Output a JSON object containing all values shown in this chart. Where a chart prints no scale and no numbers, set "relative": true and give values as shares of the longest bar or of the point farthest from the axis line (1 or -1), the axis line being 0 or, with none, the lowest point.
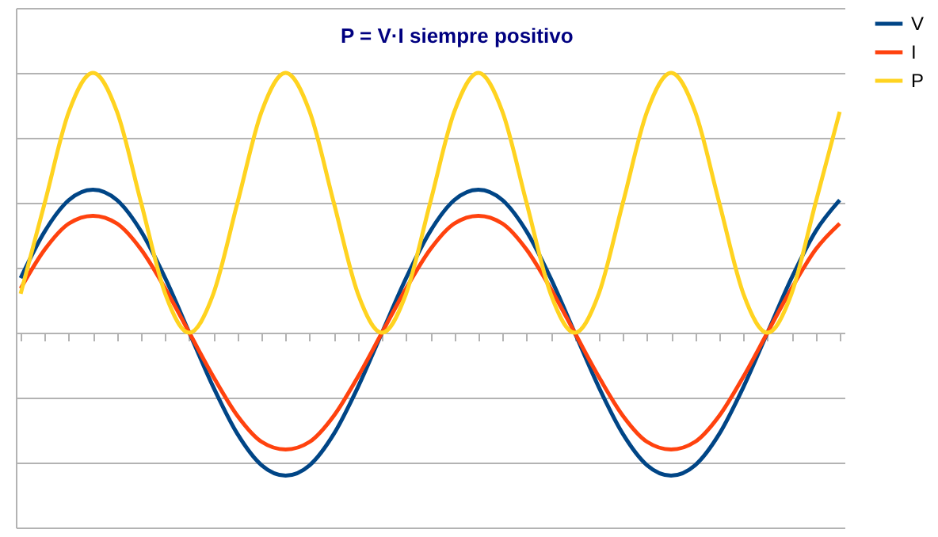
{
  "chart_data": {
    "type": "line",
    "relative": true,
    "categories": [
      null,
      null,
      null,
      null,
      null,
      null,
      null,
      null,
      null,
      null,
      null,
      null,
      null,
      null,
      null,
      null,
      null,
      null,
      null,
      null,
      null,
      null,
      null,
      null,
      null,
      null,
      null,
      null,
      null,
      null,
      null,
      null,
      null,
      null,
      null
    ],
    "series": [
      {
        "name": "V",
        "color": "#004586",
        "values": [
          0.21,
          0.39,
          0.51,
          0.55,
          0.51,
          0.39,
          0.21,
          0,
          -0.21,
          -0.39,
          -0.51,
          -0.55,
          -0.51,
          -0.39,
          -0.21,
          0,
          0.21,
          0.39,
          0.51,
          0.55,
          0.51,
          0.39,
          0.21,
          0,
          -0.21,
          -0.39,
          -0.51,
          -0.55,
          -0.51,
          -0.39,
          -0.21,
          0,
          0.21,
          0.39,
          0.51
        ]
      },
      {
        "name": "I",
        "color": "#ff420e",
        "values": [
          0.17,
          0.32,
          0.42,
          0.45,
          0.42,
          0.32,
          0.17,
          0,
          -0.17,
          -0.32,
          -0.42,
          -0.45,
          -0.42,
          -0.32,
          -0.17,
          0,
          0.17,
          0.32,
          0.42,
          0.45,
          0.42,
          0.32,
          0.17,
          0,
          -0.17,
          -0.32,
          -0.42,
          -0.45,
          -0.42,
          -0.32,
          -0.17,
          0,
          0.17,
          0.32,
          0.42
        ]
      },
      {
        "name": "P",
        "color": "#ffd320",
        "values": [
          0.15,
          0.5,
          0.85,
          1,
          0.85,
          0.5,
          0.15,
          0,
          0.15,
          0.5,
          0.85,
          1,
          0.85,
          0.5,
          0.15,
          0,
          0.15,
          0.5,
          0.85,
          1,
          0.85,
          0.5,
          0.15,
          0,
          0.15,
          0.5,
          0.85,
          1,
          0.85,
          0.5,
          0.15,
          0,
          0.15,
          0.5,
          0.85
        ]
      }
    ],
    "annotations": [
      "P = V·I  siempre positivo"
    ],
    "grid": "y",
    "legend": "right",
    "marker": "none",
    "line_style": "solid"
  }
}
